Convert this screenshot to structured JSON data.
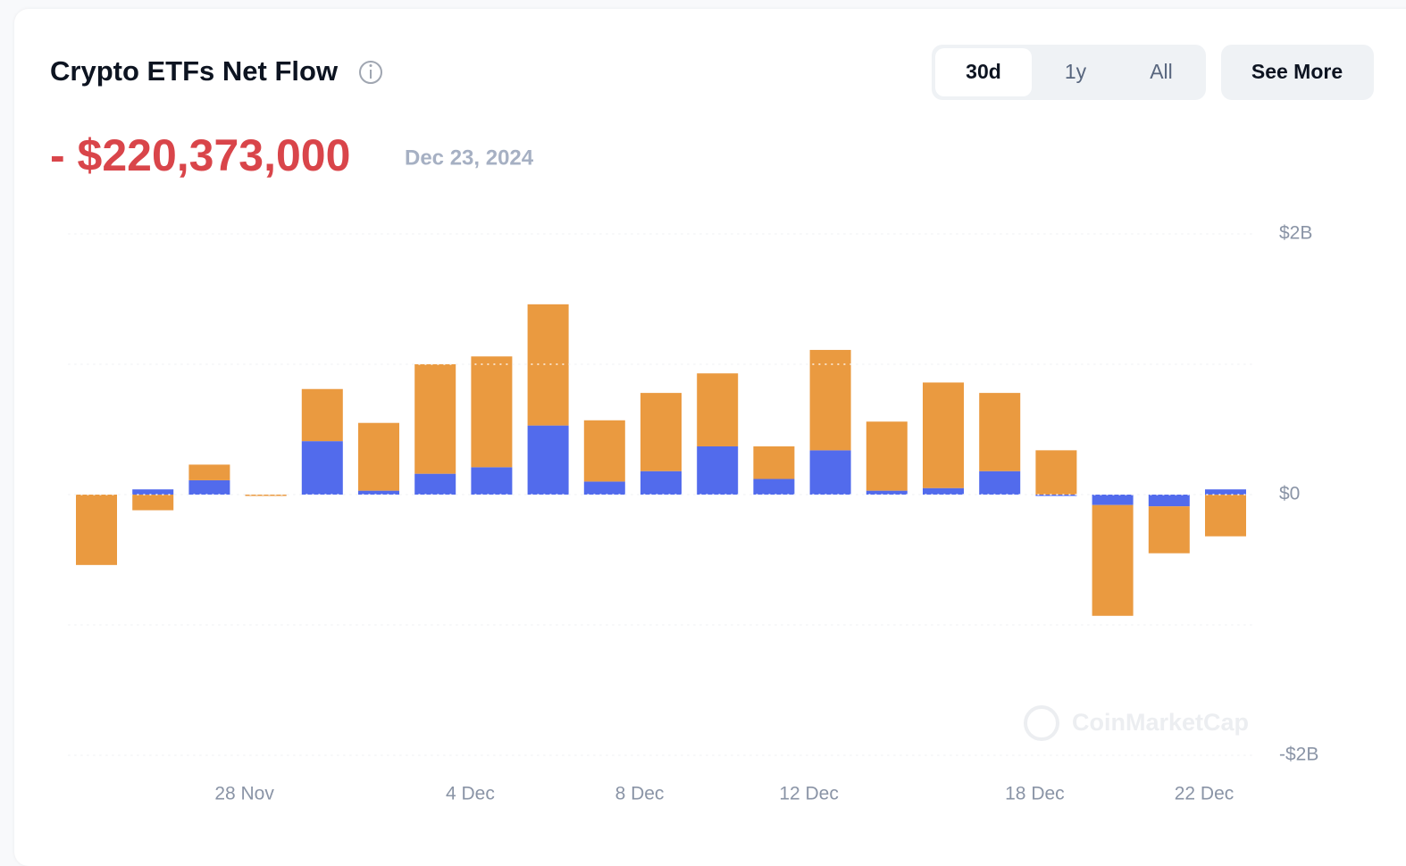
{
  "header": {
    "title": "Crypto ETFs Net Flow",
    "period_buttons": [
      "30d",
      "1y",
      "All"
    ],
    "see_more": "See More"
  },
  "headline": {
    "value": "- $220,373,000",
    "date": "Dec 23, 2024"
  },
  "watermark": "CoinMarketCap",
  "chart_data": {
    "type": "bar",
    "stacked": true,
    "categories": [
      null,
      null,
      null,
      "28 Nov",
      null,
      null,
      null,
      "4 Dec",
      null,
      null,
      "8 Dec",
      null,
      null,
      "12 Dec",
      null,
      null,
      null,
      "18 Dec",
      null,
      null,
      "22 Dec"
    ],
    "series": [
      {
        "color": "#526bec",
        "values": [
          0,
          0.04,
          0.11,
          0,
          0.41,
          0.03,
          0.16,
          0.21,
          0.53,
          0.1,
          0.18,
          0.37,
          0.12,
          0.34,
          0.03,
          0.05,
          0.18,
          0,
          -0.08,
          -0.09,
          0.04
        ]
      },
      {
        "color": "#ea9a40",
        "values": [
          -0.54,
          -0.12,
          0.12,
          0,
          0.4,
          0.52,
          0.84,
          0.85,
          0.93,
          0.47,
          0.6,
          0.56,
          0.25,
          0.77,
          0.53,
          0.81,
          0.6,
          0.34,
          -0.85,
          -0.36,
          -0.32
        ]
      }
    ],
    "ylim": [
      -2,
      2
    ],
    "yticks": [
      {
        "value": 2,
        "label": "$2B"
      },
      {
        "value": 0,
        "label": "$0"
      },
      {
        "value": -2,
        "label": "-$2B"
      }
    ],
    "minor_yticks": [
      1,
      -1
    ],
    "grid": true
  }
}
